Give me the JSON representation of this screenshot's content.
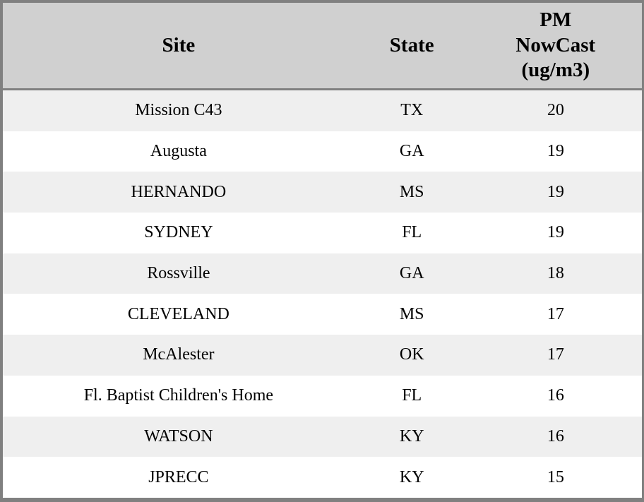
{
  "table": {
    "headers": {
      "site": "Site",
      "state": "State",
      "pm_lines": [
        "PM",
        "NowCast",
        "(ug/m3)"
      ]
    },
    "rows": [
      {
        "site": "Mission C43",
        "state": "TX",
        "pm": "20"
      },
      {
        "site": "Augusta",
        "state": "GA",
        "pm": "19"
      },
      {
        "site": "HERNANDO",
        "state": "MS",
        "pm": "19"
      },
      {
        "site": "SYDNEY",
        "state": "FL",
        "pm": "19"
      },
      {
        "site": "Rossville",
        "state": "GA",
        "pm": "18"
      },
      {
        "site": "CLEVELAND",
        "state": "MS",
        "pm": "17"
      },
      {
        "site": "McAlester",
        "state": "OK",
        "pm": "17"
      },
      {
        "site": "Fl. Baptist Children's Home",
        "state": "FL",
        "pm": "16"
      },
      {
        "site": "WATSON",
        "state": "KY",
        "pm": "16"
      },
      {
        "site": "JPRECC",
        "state": "KY",
        "pm": "15"
      }
    ]
  },
  "colors": {
    "border": "#808080",
    "header_bg": "#d0d0d0",
    "row_alt_bg": "#efefef",
    "row_bg": "#ffffff",
    "text": "#000000"
  },
  "chart_data": {
    "type": "table",
    "columns": [
      "Site",
      "State",
      "PM NowCast (ug/m3)"
    ],
    "rows": [
      [
        "Mission C43",
        "TX",
        20
      ],
      [
        "Augusta",
        "GA",
        19
      ],
      [
        "HERNANDO",
        "MS",
        19
      ],
      [
        "SYDNEY",
        "FL",
        19
      ],
      [
        "Rossville",
        "GA",
        18
      ],
      [
        "CLEVELAND",
        "MS",
        17
      ],
      [
        "McAlester",
        "OK",
        17
      ],
      [
        "Fl. Baptist Children's Home",
        "FL",
        16
      ],
      [
        "WATSON",
        "KY",
        16
      ],
      [
        "JPRECC",
        "KY",
        15
      ]
    ]
  }
}
